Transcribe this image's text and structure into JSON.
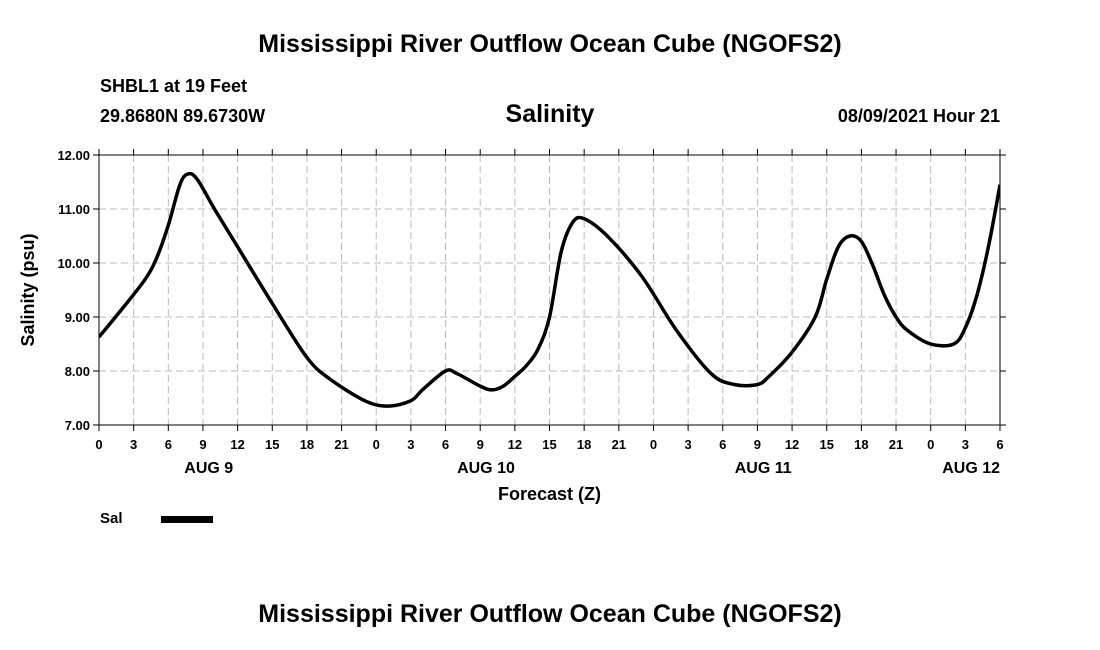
{
  "page": {
    "top_title": "Mississippi River Outflow Ocean Cube (NGOFS2)",
    "bottom_title": "Mississippi River Outflow Ocean Cube (NGOFS2)",
    "station": "SHBL1 at 19 Feet",
    "coords": "29.8680N  89.6730W",
    "variable": "Salinity",
    "datetime": "08/09/2021 Hour 21"
  },
  "colors": {
    "line": "#000000",
    "grid": "#bbbbbb",
    "axis": "#000000"
  },
  "chart_data": {
    "type": "line",
    "title": "Salinity",
    "xlabel": "Forecast (Z)",
    "ylabel": "Salinity (psu)",
    "xlim": [
      0,
      78
    ],
    "ylim": [
      7.0,
      12.0
    ],
    "y_ticks": [
      7.0,
      8.0,
      9.0,
      10.0,
      11.0,
      12.0
    ],
    "y_tick_labels": [
      "7.00",
      "8.00",
      "9.00",
      "10.00",
      "11.00",
      "12.00"
    ],
    "x_ticks": [
      0,
      3,
      6,
      9,
      12,
      15,
      18,
      21,
      24,
      27,
      30,
      33,
      36,
      39,
      42,
      45,
      48,
      51,
      54,
      57,
      60,
      63,
      66,
      69,
      72,
      75,
      78
    ],
    "x_tick_labels": [
      "0",
      "3",
      "6",
      "9",
      "12",
      "15",
      "18",
      "21",
      "0",
      "3",
      "6",
      "9",
      "12",
      "15",
      "18",
      "21",
      "0",
      "3",
      "6",
      "9",
      "12",
      "15",
      "18",
      "21",
      "0",
      "3",
      "6"
    ],
    "day_labels": [
      {
        "text": "AUG 9",
        "at": 9.5
      },
      {
        "text": "AUG 10",
        "at": 33.5
      },
      {
        "text": "AUG 11",
        "at": 57.5
      },
      {
        "text": "AUG 12",
        "at": 75.5
      }
    ],
    "grid": true,
    "legend": {
      "position": "bottom-left",
      "entries": [
        {
          "label": "Sal"
        }
      ]
    },
    "series": [
      {
        "name": "Sal",
        "x": [
          0,
          2,
          4,
          5,
          6,
          7,
          7.7,
          8.5,
          10,
          12,
          15,
          18,
          20,
          23,
          25,
          27,
          28,
          30,
          31,
          33,
          34,
          35,
          36,
          37,
          38,
          39,
          40,
          41,
          42,
          44,
          47,
          50,
          53,
          55,
          57,
          58,
          60,
          62,
          63,
          64,
          65,
          66,
          67,
          68,
          69,
          70,
          72,
          74,
          75,
          76,
          77,
          78
        ],
        "y": [
          8.63,
          9.15,
          9.7,
          10.1,
          10.7,
          11.45,
          11.65,
          11.55,
          11.0,
          10.3,
          9.25,
          8.25,
          7.85,
          7.45,
          7.35,
          7.45,
          7.65,
          8.0,
          7.95,
          7.72,
          7.65,
          7.72,
          7.9,
          8.1,
          8.4,
          9.0,
          10.2,
          10.75,
          10.82,
          10.5,
          9.75,
          8.75,
          7.95,
          7.75,
          7.75,
          7.9,
          8.35,
          9.0,
          9.7,
          10.3,
          10.5,
          10.4,
          9.95,
          9.4,
          9.0,
          8.75,
          8.5,
          8.5,
          8.8,
          9.4,
          10.3,
          11.45
        ]
      }
    ]
  }
}
